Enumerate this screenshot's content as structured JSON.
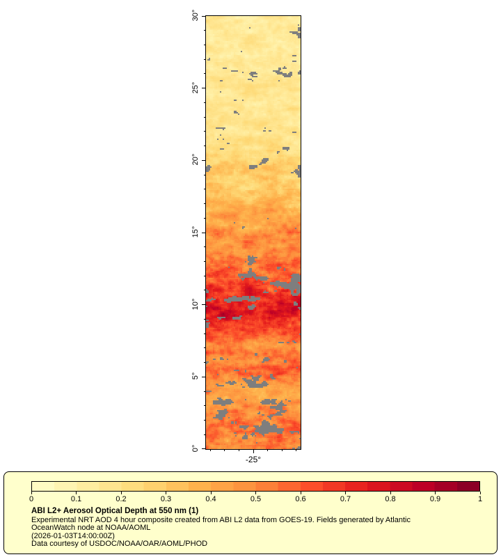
{
  "map": {
    "y_axis_ticks": [
      {
        "lat": 0,
        "label": "0°"
      },
      {
        "lat": 5,
        "label": "5°"
      },
      {
        "lat": 10,
        "label": "10°"
      },
      {
        "lat": 15,
        "label": "15°"
      },
      {
        "lat": 20,
        "label": "20°"
      },
      {
        "lat": 25,
        "label": "25°"
      },
      {
        "lat": 30,
        "label": "30°"
      }
    ],
    "x_axis_tick": {
      "lon": -25,
      "label": "-25°"
    }
  },
  "legend": {
    "title": "ABI L2+ Aerosol Optical Depth at 550 nm (1)",
    "description_line1": "Experimental NRT AOD 4 hour composite created from ABI L2 data from GOES-19. Fields generated by Atlantic",
    "description_line2": "OceanWatch node at NOAA/AOML",
    "timestamp_line": "(2026-01-03T14:00:00Z)",
    "courtesy_line": "Data courtesy of USDOC/NOAA/OAR/AOML/PHOD",
    "colorbar_ticks": [
      "0",
      "0.1",
      "0.2",
      "0.3",
      "0.4",
      "0.5",
      "0.6",
      "0.7",
      "0.8",
      "0.9",
      "1"
    ],
    "background_color": "#FFFFCC"
  },
  "chart_data": {
    "type": "heatmap",
    "title": "ABI L2+ Aerosol Optical Depth at 550 nm (1)",
    "variable": "Aerosol Optical Depth at 550 nm",
    "lat_range": [
      0,
      30
    ],
    "lat_ticks_deg": [
      0,
      5,
      10,
      15,
      20,
      25,
      30
    ],
    "lon_tick_deg": -25,
    "lon_span_deg": [
      -28.3,
      -21.7
    ],
    "value_range": [
      0,
      1
    ],
    "colorbar_tick_values": [
      0,
      0.1,
      0.2,
      0.3,
      0.4,
      0.5,
      0.6,
      0.7,
      0.8,
      0.9,
      1
    ],
    "aod_by_lat_band": [
      0.52,
      0.55,
      0.5,
      0.45,
      0.45,
      0.55,
      0.5,
      0.55,
      0.65,
      0.75,
      0.75,
      0.65,
      0.55,
      0.5,
      0.5,
      0.45,
      0.4,
      0.33,
      0.3,
      0.28,
      0.22,
      0.2,
      0.18,
      0.17,
      0.16,
      0.16,
      0.15,
      0.15,
      0.15,
      0.14
    ],
    "missing_fraction_by_lat_band": [
      0.15,
      0.2,
      0.35,
      0.25,
      0.2,
      0.15,
      0.1,
      0.05,
      0.05,
      0.12,
      0.25,
      0.3,
      0.2,
      0.05,
      0.05,
      0.1,
      0.05,
      0.02,
      0.05,
      0.3,
      0.05,
      0.15,
      0.1,
      0.05,
      0.05,
      0.2,
      0.25,
      0.1,
      0.15,
      0.1
    ],
    "missing_color": "#7E7E7E",
    "colormap_stops": [
      {
        "v": 0,
        "c": "#FFFFCC"
      },
      {
        "v": 0.125,
        "c": "#FFEDA0"
      },
      {
        "v": 0.25,
        "c": "#FED976"
      },
      {
        "v": 0.375,
        "c": "#FEB24C"
      },
      {
        "v": 0.5,
        "c": "#FD8D3C"
      },
      {
        "v": 0.625,
        "c": "#FC4E2A"
      },
      {
        "v": 0.75,
        "c": "#E31A1C"
      },
      {
        "v": 0.875,
        "c": "#BD0026"
      },
      {
        "v": 1,
        "c": "#800026"
      }
    ],
    "colorbar_segments": 20
  }
}
